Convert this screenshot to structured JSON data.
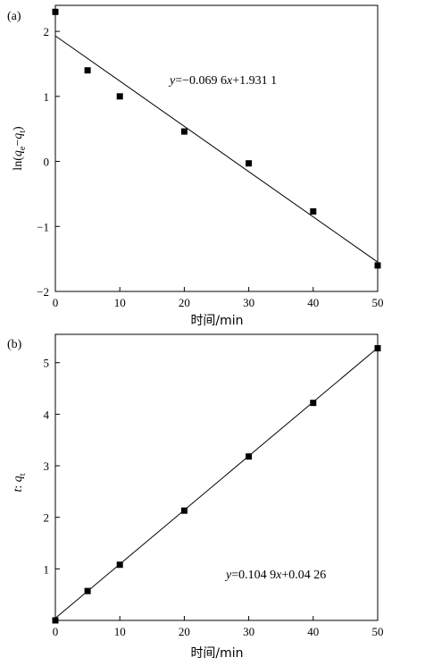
{
  "chart_data": [
    {
      "type": "scatter",
      "panel_label": "(a)",
      "title": "",
      "xlabel": "时间/min",
      "ylabel": "ln(q_e−q_t)",
      "ylabel_parts": {
        "prefix": "ln(",
        "q1": "q",
        "sub1": "e",
        "minus": "−",
        "q2": "q",
        "sub2": "t",
        "suffix": ")"
      },
      "xlim": [
        0,
        50
      ],
      "ylim": [
        -2,
        2.4
      ],
      "xticks": [
        0,
        10,
        20,
        30,
        40,
        50
      ],
      "xtick_labels": [
        "0",
        "10",
        "20",
        "30",
        "40",
        "50"
      ],
      "yticks": [
        -2,
        -1,
        0,
        1,
        2
      ],
      "ytick_labels": [
        "−2",
        "−1",
        "0",
        "1",
        "2"
      ],
      "points": {
        "x": [
          0,
          5,
          10,
          20,
          30,
          40,
          50
        ],
        "y": [
          2.3,
          1.4,
          1.0,
          0.46,
          -0.03,
          -0.77,
          -1.6
        ]
      },
      "fit": {
        "slope": -0.0696,
        "intercept": 1.9311,
        "x_range": [
          0,
          50
        ]
      },
      "equation_label": {
        "y_var": "y",
        "text": "=−0.069 6",
        "x_var": "x",
        "text2": "+1.931 1"
      },
      "grid": false
    },
    {
      "type": "scatter",
      "panel_label": "(b)",
      "title": "",
      "xlabel": "时间/min",
      "ylabel": "t: q_t",
      "ylabel_parts": {
        "t": "t",
        "colon": ": ",
        "q": "q",
        "sub": "t"
      },
      "xlim": [
        0,
        50
      ],
      "ylim": [
        0,
        5.55
      ],
      "xticks": [
        0,
        10,
        20,
        30,
        40,
        50
      ],
      "xtick_labels": [
        "0",
        "10",
        "20",
        "30",
        "40",
        "50"
      ],
      "yticks": [
        1,
        2,
        3,
        4,
        5
      ],
      "ytick_labels": [
        "1",
        "2",
        "3",
        "4",
        "5"
      ],
      "points": {
        "x": [
          0,
          5,
          10,
          20,
          30,
          40,
          50
        ],
        "y": [
          0.0,
          0.57,
          1.08,
          2.13,
          3.18,
          4.22,
          5.28
        ]
      },
      "fit": {
        "slope": 0.1049,
        "intercept": 0.0426,
        "x_range": [
          0,
          50
        ]
      },
      "equation_label": {
        "y_var": "y",
        "text": "=0.104 9",
        "x_var": "x",
        "text2": "+0.04 26"
      },
      "grid": false
    }
  ]
}
